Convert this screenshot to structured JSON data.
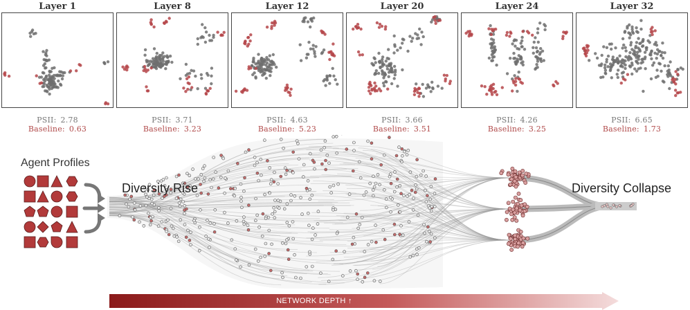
{
  "panels": [
    {
      "title": "Layer 1",
      "psii_label": "PSII:",
      "psii": "2.78",
      "base_label": "Baseline:",
      "baseline": "0.63"
    },
    {
      "title": "Layer 8",
      "psii_label": "PSII:",
      "psii": "3.71",
      "base_label": "Baseline:",
      "baseline": "3.23"
    },
    {
      "title": "Layer 12",
      "psii_label": "PSII:",
      "psii": "4.63",
      "base_label": "Baseline:",
      "baseline": "5.23"
    },
    {
      "title": "Layer 20",
      "psii_label": "PSII:",
      "psii": "3.66",
      "base_label": "Baseline:",
      "baseline": "3.51"
    },
    {
      "title": "Layer 24",
      "psii_label": "PSII:",
      "psii": "4.26",
      "base_label": "Baseline:",
      "baseline": "3.25"
    },
    {
      "title": "Layer 32",
      "psii_label": "PSII:",
      "psii": "6.65",
      "base_label": "Baseline:",
      "baseline": "1.73"
    }
  ],
  "diagram": {
    "agent_profiles": "Agent Profiles",
    "diversity_rise": "Diversity Rise",
    "diversity_collapse": "Diversity Collapse",
    "axis_label": "NETWORK DEPTH ↑"
  },
  "colors": {
    "gray_points": "#6e6e6e",
    "red_points": "#b5474a",
    "shape_fill": "#b23a3a",
    "arrow_dark": "#8b1a1a",
    "arrow_light": "#f2d6d6"
  }
}
